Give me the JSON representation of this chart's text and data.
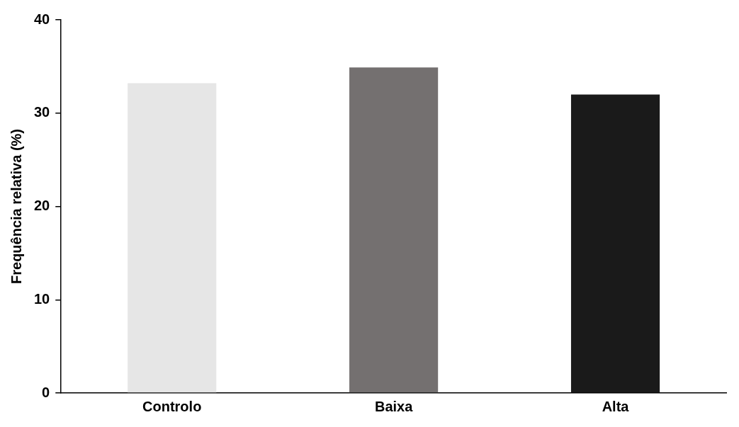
{
  "chart_data": {
    "type": "bar",
    "ylabel": "Frequência relativa (%)",
    "categories": [
      "Controlo",
      "Baixa",
      "Alta"
    ],
    "values": [
      33.2,
      34.9,
      32.0
    ],
    "colors": [
      "#e6e6e6",
      "#747070",
      "#1a1a1a"
    ],
    "ylim": [
      0,
      40
    ],
    "yticks": [
      0,
      10,
      20,
      30,
      40
    ],
    "grid": false,
    "legend": false
  }
}
